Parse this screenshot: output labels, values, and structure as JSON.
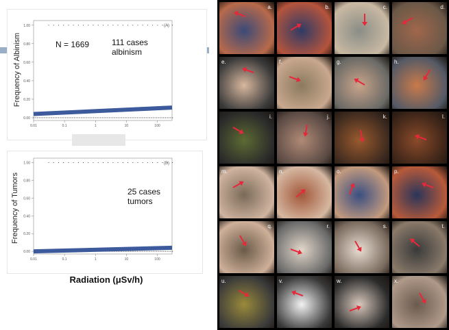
{
  "left": {
    "x_axis_title": "Radiation (μSv/h)",
    "accent_color": "#9aaec6",
    "caption_box_color": "#e7e7e7"
  },
  "chart_data": [
    {
      "type": "line",
      "panel_label": "(A)",
      "ylabel": "Frequency of Albinism",
      "xlabel": "Radiation (μSv/h)",
      "x_scale": "log",
      "x_ticks": [
        "0.01",
        "0.1",
        "1",
        "10",
        "100"
      ],
      "x_tick_values": [
        0.01,
        0.1,
        1,
        10,
        100
      ],
      "y_ticks": [
        "0.00",
        "0.20",
        "0.40",
        "0.60",
        "0.80",
        "1.00"
      ],
      "y_tick_values": [
        0,
        0.2,
        0.4,
        0.6,
        0.8,
        1.0
      ],
      "xlim": [
        0.01,
        300
      ],
      "ylim": [
        -0.03,
        1.05
      ],
      "line_color": "#3d5a9c",
      "series": [
        {
          "x": [
            0.01,
            300
          ],
          "y": [
            0.04,
            0.11
          ]
        }
      ],
      "annotations": [
        "N = 1669",
        "111 cases",
        "albinism"
      ]
    },
    {
      "type": "line",
      "panel_label": "(B)",
      "ylabel": "Frequency of Tumors",
      "xlabel": "Radiation (μSv/h)",
      "x_scale": "log",
      "x_ticks": [
        "0.01",
        "0.1",
        "1",
        "10",
        "100"
      ],
      "x_tick_values": [
        0.01,
        0.1,
        1,
        10,
        100
      ],
      "y_ticks": [
        "0.00",
        "0.20",
        "0.40",
        "0.60",
        "0.80",
        "1.00"
      ],
      "y_tick_values": [
        0,
        0.2,
        0.4,
        0.6,
        0.8,
        1.0
      ],
      "xlim": [
        0.01,
        300
      ],
      "ylim": [
        -0.03,
        1.05
      ],
      "line_color": "#3d5a9c",
      "series": [
        {
          "x": [
            0.01,
            300
          ],
          "y": [
            0.0,
            0.04
          ]
        }
      ],
      "annotations": [
        "25 cases",
        "tumors"
      ]
    }
  ],
  "photos": [
    {
      "label": "a.",
      "side": "right",
      "c1": "#3b4a78",
      "c2": "#b86a4a"
    },
    {
      "label": "b.",
      "side": "right",
      "c1": "#2f3b66",
      "c2": "#b5543c"
    },
    {
      "label": "c.",
      "side": "right",
      "c1": "#8a8d86",
      "c2": "#c9b9a3"
    },
    {
      "label": "d.",
      "side": "right",
      "c1": "#a0674b",
      "c2": "#6b5848"
    },
    {
      "label": "e.",
      "side": "left",
      "c1": "#d8b79e",
      "c2": "#3a3a3a"
    },
    {
      "label": "f.",
      "side": "left",
      "c1": "#8b7a5e",
      "c2": "#c9a88f"
    },
    {
      "label": "g.",
      "side": "left",
      "c1": "#c9a48a",
      "c2": "#6a6a66"
    },
    {
      "label": "h.",
      "side": "left",
      "c1": "#c97a4a",
      "c2": "#545a66"
    },
    {
      "label": "i.",
      "side": "right",
      "c1": "#5d6b33",
      "c2": "#2a2a2a"
    },
    {
      "label": "j.",
      "side": "right",
      "c1": "#b18a76",
      "c2": "#5a4a44"
    },
    {
      "label": "k.",
      "side": "right",
      "c1": "#9a5a2e",
      "c2": "#3d2a1f"
    },
    {
      "label": "l.",
      "side": "right",
      "c1": "#8b4a2a",
      "c2": "#3a2418"
    },
    {
      "label": "m.",
      "side": "left",
      "c1": "#7a6a58",
      "c2": "#d0b4a0"
    },
    {
      "label": "n.",
      "side": "left",
      "c1": "#a1583a",
      "c2": "#d6b8a2"
    },
    {
      "label": "o.",
      "side": "left",
      "c1": "#3a4f82",
      "c2": "#c39a7e"
    },
    {
      "label": "p.",
      "side": "left",
      "c1": "#2a3559",
      "c2": "#b85a3a"
    },
    {
      "label": "q.",
      "side": "right",
      "c1": "#6a5a48",
      "c2": "#cfb09a"
    },
    {
      "label": "r.",
      "side": "right",
      "c1": "#e2d6c9",
      "c2": "#6a6a6a"
    },
    {
      "label": "s.",
      "side": "right",
      "c1": "#e8dcd0",
      "c2": "#7a6a5e"
    },
    {
      "label": "t.",
      "side": "right",
      "c1": "#3a3a3a",
      "c2": "#8a7a6a"
    },
    {
      "label": "u.",
      "side": "left",
      "c1": "#9a8a3a",
      "c2": "#3a3a3a"
    },
    {
      "label": "v.",
      "side": "left",
      "c1": "#f2f2f2",
      "c2": "#3a3a3a"
    },
    {
      "label": "w.",
      "side": "left",
      "c1": "#d8c8bc",
      "c2": "#2a2a2a"
    },
    {
      "label": "x.",
      "side": "left",
      "c1": "#6a5a4e",
      "c2": "#b09a8a"
    }
  ]
}
